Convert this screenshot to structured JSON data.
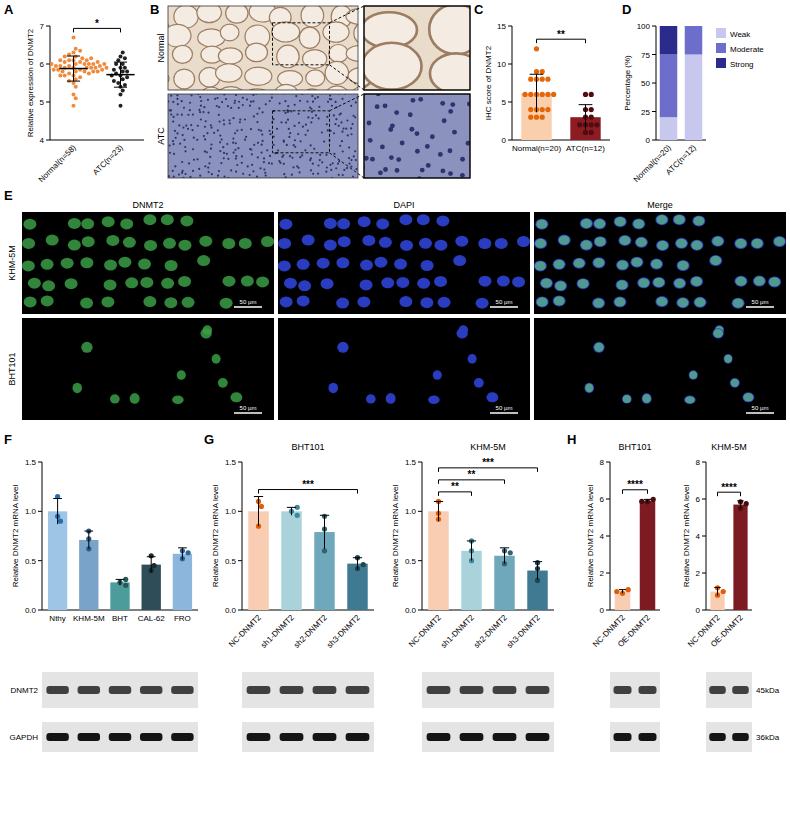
{
  "chart_data": [
    {
      "panel": "A",
      "type": "dot",
      "y_label": "Relative expression of DNMT2",
      "categories": [
        "Normal(n=58)",
        "ATC(n=23)"
      ],
      "colors": [
        "#f08a3c",
        "#222222"
      ],
      "values": [
        5.88,
        5.72
      ],
      "errors": [
        0.33,
        0.33
      ],
      "points": [
        [
          5.9,
          6.0,
          5.8,
          6.1,
          5.7,
          5.95,
          6.05,
          5.85,
          6.2,
          5.6,
          5.9,
          6.0,
          5.75,
          6.1,
          5.8,
          5.5,
          6.3,
          5.9,
          6.15,
          5.65,
          5.95,
          6.0,
          5.85,
          6.25,
          5.7,
          5.9,
          6.05,
          4.9,
          5.8,
          6.1,
          5.95,
          5.55,
          6.0,
          6.4,
          5.9,
          5.85,
          6.2,
          5.4,
          6.0,
          5.75,
          6.1,
          5.9,
          6.7,
          5.8,
          5.95,
          6.05,
          5.2,
          6.0,
          5.85,
          5.9,
          6.15,
          5.7,
          6.0,
          5.9,
          6.35,
          5.8,
          5.1,
          6.0
        ],
        [
          5.7,
          5.9,
          5.4,
          6.2,
          5.8,
          5.6,
          6.0,
          5.3,
          5.75,
          6.1,
          5.5,
          5.9,
          4.9,
          5.65,
          6.3,
          5.85,
          5.2,
          6.0,
          5.7,
          5.45,
          6.15,
          5.8,
          5.55
        ]
      ],
      "ylim": [
        4,
        7
      ],
      "yticks": [
        4,
        5,
        6,
        7
      ],
      "annotations": [
        {
          "text": "*",
          "from": 0,
          "to": 1
        }
      ]
    },
    {
      "panel": "C",
      "type": "bar",
      "y_label": "IHC score of DNMT2",
      "categories": [
        "Normal(n=20)",
        "ATC(n=12)"
      ],
      "colors": [
        "#f9cfae",
        "#8c1c22"
      ],
      "values": [
        6.15,
        3.0
      ],
      "errors": [
        2.5,
        1.65
      ],
      "points": [
        [
          3,
          4,
          4,
          6,
          6,
          6,
          8,
          8,
          8,
          9,
          9,
          12,
          6,
          4,
          3,
          6,
          8,
          4,
          6,
          3
        ],
        [
          1,
          2,
          2,
          2,
          3,
          3,
          4,
          4,
          6,
          6,
          1,
          2
        ]
      ],
      "ylim": [
        0,
        15
      ],
      "yticks": [
        0,
        5,
        10,
        15
      ],
      "annotations": [
        {
          "text": "**",
          "from": 0,
          "to": 1
        }
      ]
    },
    {
      "panel": "D",
      "type": "bar",
      "stacked": true,
      "y_label": "Percentage (%)",
      "categories": [
        "Normal(n=20)",
        "ATC(n=12)"
      ],
      "series": [
        {
          "name": "Weak",
          "color": "#c8c8ef",
          "values": [
            20,
            75
          ]
        },
        {
          "name": "Moderate",
          "color": "#6d6dcc",
          "values": [
            55,
            25
          ]
        },
        {
          "name": "Strong",
          "color": "#2b2b8c",
          "values": [
            25,
            0
          ]
        }
      ],
      "ylim": [
        0,
        100
      ],
      "yticks": [
        0,
        25,
        50,
        75,
        100
      ],
      "legend": "right"
    },
    {
      "panel": "F",
      "type": "bar",
      "y_label": "Relative DNMT2 mRNA level",
      "categories": [
        "Nthy",
        "KHM-5M",
        "BHT",
        "CAL-62",
        "FRO"
      ],
      "colors": [
        "#9ec4e6",
        "#7aa3c9",
        "#4d9c9c",
        "#2f4d59",
        "#8db6dc"
      ],
      "values": [
        1.0,
        0.71,
        0.28,
        0.46,
        0.57
      ],
      "errors": [
        0.13,
        0.09,
        0.03,
        0.08,
        0.06
      ],
      "points": [
        [
          0.95,
          1.15,
          0.9
        ],
        [
          0.62,
          0.8,
          0.72
        ],
        [
          0.28,
          0.25,
          0.31
        ],
        [
          0.4,
          0.55,
          0.45
        ],
        [
          0.52,
          0.6,
          0.58
        ]
      ],
      "ylim": [
        0,
        1.5
      ],
      "yticks": [
        {
          "value": 0,
          "label": "0.0"
        },
        0.5,
        {
          "value": 1,
          "label": "1.0"
        },
        1.5
      ]
    },
    {
      "panel": "G",
      "type": "bar",
      "title": "BHT101",
      "y_label": "Relative DNMT2 mRNA level",
      "categories": [
        "NC-DNMT2",
        "sh1-DNMT2",
        "sh2-DNMT2",
        "sh3-DNMT2"
      ],
      "colors": [
        "#f8cdb2",
        "#a9d2da",
        "#6ea8ba",
        "#3f7a92"
      ],
      "values": [
        1.0,
        1.0,
        0.79,
        0.47
      ],
      "errors": [
        0.15,
        0.04,
        0.17,
        0.06
      ],
      "points": [
        [
          1.1,
          0.85,
          1.05
        ],
        [
          1.0,
          0.96,
          1.04
        ],
        [
          0.6,
          0.95,
          0.82
        ],
        [
          0.42,
          0.53,
          0.46
        ]
      ],
      "ylim": [
        0,
        1.5
      ],
      "yticks": [
        {
          "value": 0,
          "label": "0.0"
        },
        0.5,
        {
          "value": 1,
          "label": "1.0"
        },
        1.5
      ],
      "annotations": [
        {
          "text": "***",
          "from": 0,
          "to": 3
        }
      ]
    },
    {
      "type": "bar",
      "title": "KHM-5M",
      "y_label": "Relative DNMT2 mRNA level",
      "categories": [
        "NC-DNMT2",
        "sh1-DNMT2",
        "sh2-DNMT2",
        "sh3-DNMT2"
      ],
      "colors": [
        "#f8cdb2",
        "#a9d2da",
        "#6ea8ba",
        "#3f7a92"
      ],
      "values": [
        1.0,
        0.6,
        0.55,
        0.4
      ],
      "errors": [
        0.1,
        0.1,
        0.08,
        0.09
      ],
      "points": [
        [
          1.1,
          0.92,
          0.98
        ],
        [
          0.5,
          0.7,
          0.6
        ],
        [
          0.6,
          0.47,
          0.58
        ],
        [
          0.3,
          0.48,
          0.42
        ]
      ],
      "ylim": [
        0,
        1.5
      ],
      "yticks": [
        {
          "value": 0,
          "label": "0.0"
        },
        0.5,
        {
          "value": 1,
          "label": "1.0"
        },
        1.5
      ],
      "annotations": [
        {
          "text": "**",
          "from": 0,
          "to": 1
        },
        {
          "text": "**",
          "from": 0,
          "to": 2
        },
        {
          "text": "***",
          "from": 0,
          "to": 3
        }
      ]
    },
    {
      "panel": "H",
      "type": "bar",
      "title": "BHT101",
      "y_label": "Relative DNMT2 mRNA level",
      "categories": [
        "NC-DNMT2",
        "OE-DNMT2"
      ],
      "colors": [
        "#f8cdb2",
        "#7d1b22"
      ],
      "values": [
        1.0,
        5.9
      ],
      "errors": [
        0.1,
        0.08
      ],
      "points": [
        [
          0.9,
          1.1,
          1.0
        ],
        [
          5.85,
          5.98,
          5.87
        ]
      ],
      "ylim": [
        0,
        8
      ],
      "yticks": [
        0,
        2,
        4,
        6,
        8
      ],
      "annotations": [
        {
          "text": "****",
          "from": 0,
          "to": 1
        }
      ]
    },
    {
      "type": "bar",
      "title": "KHM-5M",
      "y_label": "Relative DNMT2 mRNA level",
      "categories": [
        "NC-DNMT2",
        "OE-DNMT2"
      ],
      "colors": [
        "#f8cdb2",
        "#7d1b22"
      ],
      "values": [
        1.0,
        5.7
      ],
      "errors": [
        0.22,
        0.2
      ],
      "points": [
        [
          0.8,
          1.2,
          1.0
        ],
        [
          5.5,
          5.85,
          5.75
        ]
      ],
      "ylim": [
        0,
        8
      ],
      "yticks": [
        0,
        2,
        4,
        6,
        8
      ],
      "annotations": [
        {
          "text": "****",
          "from": 0,
          "to": 1
        }
      ]
    }
  ],
  "image_panels": [
    {
      "panel": "B",
      "rows": [
        "Normal",
        "ATC"
      ]
    },
    {
      "panel": "E",
      "columns": [
        "DNMT2",
        "DAPI",
        "Merge"
      ],
      "rows": [
        "KHM-5M",
        "BHT101"
      ],
      "scale_bar": "50 μm"
    }
  ],
  "blots": [
    {
      "row_labels": [
        "DNMT2",
        "GAPDH"
      ]
    },
    {
      "marker_labels": [
        "45kDa",
        "36kDa"
      ]
    }
  ]
}
